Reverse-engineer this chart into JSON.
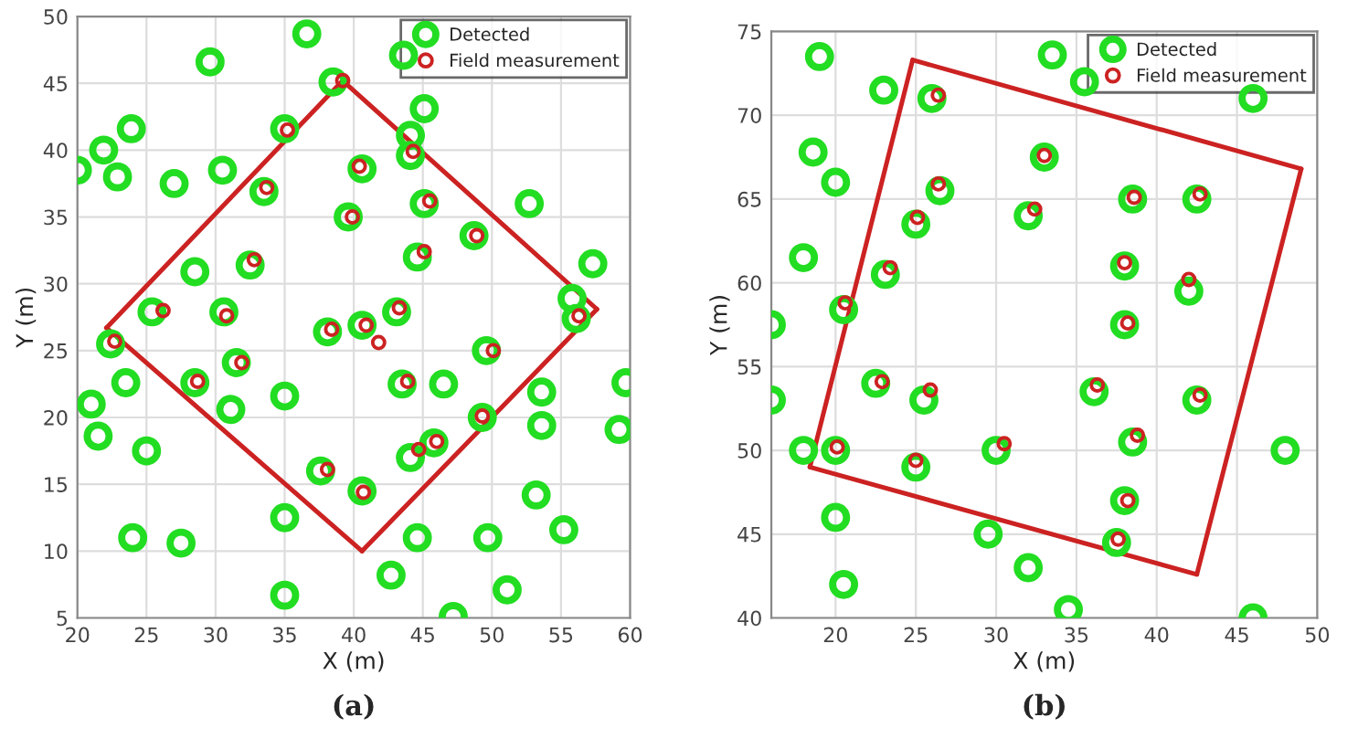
{
  "chart_data": [
    {
      "type": "scatter",
      "xlabel": "X (m)",
      "ylabel": "Y (m)",
      "xlim": [
        20,
        60
      ],
      "ylim": [
        5,
        50
      ],
      "xticks": [
        20,
        25,
        30,
        35,
        40,
        45,
        50,
        55,
        60
      ],
      "yticks": [
        5,
        10,
        15,
        20,
        25,
        30,
        35,
        40,
        45,
        50
      ],
      "grid": true,
      "legend": "top right",
      "annotations": [
        "(a)"
      ],
      "series": [
        {
          "type": "line",
          "color": "#cc2222",
          "marker": "none",
          "line_style": "solid",
          "x": [
            22.1,
            39.2
          ],
          "values": [
            26.7,
            45.2
          ]
        },
        {
          "type": "line",
          "color": "#cc2222",
          "marker": "none",
          "line_style": "solid",
          "x": [
            39.2,
            57.6
          ],
          "values": [
            45.2,
            28.1
          ]
        },
        {
          "type": "line",
          "color": "#cc2222",
          "marker": "none",
          "line_style": "solid",
          "x": [
            40.6,
            57.6
          ],
          "values": [
            10.0,
            28.1
          ]
        },
        {
          "type": "line",
          "color": "#cc2222",
          "marker": "none",
          "line_style": "solid",
          "x": [
            22.1,
            40.6
          ],
          "values": [
            26.7,
            10.0
          ]
        },
        {
          "type": "scatter",
          "name": "Detected",
          "color": "#22dd22",
          "marker": "circle",
          "x": [
            36.6,
            29.6,
            43.6,
            38.5,
            45.1,
            23.9,
            21.9,
            35.0,
            44.1,
            44.1,
            20.0,
            22.9,
            27.0,
            30.5,
            33.5,
            40.6,
            45.1,
            52.7,
            39.6,
            48.7,
            57.3,
            44.6,
            32.5,
            28.5,
            25.4,
            30.6,
            38.1,
            40.6,
            43.1,
            55.8,
            56.1,
            22.4,
            49.6,
            23.5,
            21.0,
            21.5,
            25.0,
            28.5,
            31.5,
            31.1,
            35.0,
            37.6,
            40.6,
            35.0,
            24.0,
            27.5,
            35.0,
            42.7,
            47.2,
            44.6,
            49.7,
            51.1,
            53.2,
            55.2,
            43.5,
            46.5,
            44.1,
            45.8,
            49.3,
            53.6,
            53.6,
            59.7,
            59.2
          ],
          "values": [
            48.7,
            46.6,
            47.1,
            45.1,
            43.1,
            41.6,
            40.0,
            41.6,
            41.1,
            39.6,
            38.5,
            38.0,
            37.5,
            38.5,
            36.9,
            38.6,
            36.0,
            36.0,
            35.0,
            33.6,
            31.5,
            32.0,
            31.4,
            30.9,
            27.9,
            27.9,
            26.4,
            26.9,
            27.9,
            28.9,
            27.4,
            25.5,
            25.0,
            22.6,
            21.0,
            18.6,
            17.5,
            22.6,
            24.1,
            20.6,
            21.6,
            16.0,
            14.5,
            12.5,
            11.0,
            10.6,
            6.7,
            8.2,
            5.1,
            11.0,
            11.0,
            7.1,
            14.2,
            11.6,
            22.5,
            22.5,
            17.0,
            18.1,
            20.0,
            21.9,
            19.4,
            22.6,
            19.1
          ]
        },
        {
          "type": "scatter",
          "name": "Field measurement",
          "color": "#cc2222",
          "marker": "circle",
          "x": [
            39.2,
            35.2,
            44.3,
            33.7,
            40.4,
            45.5,
            39.9,
            48.9,
            45.1,
            32.8,
            26.2,
            30.8,
            38.4,
            40.9,
            43.3,
            41.8,
            56.3,
            22.7,
            50.1,
            28.7,
            31.9,
            38.1,
            40.7,
            43.9,
            44.7,
            46.0,
            49.3
          ],
          "values": [
            45.2,
            41.5,
            39.9,
            37.2,
            38.8,
            36.2,
            35.0,
            33.6,
            32.4,
            31.8,
            28.0,
            27.6,
            26.6,
            26.9,
            28.2,
            25.6,
            27.6,
            25.7,
            25.0,
            22.7,
            24.1,
            16.1,
            14.4,
            22.7,
            17.6,
            18.2,
            20.1
          ]
        }
      ]
    },
    {
      "type": "scatter",
      "xlabel": "X (m)",
      "ylabel": "Y (m)",
      "xlim": [
        16,
        50
      ],
      "ylim": [
        40,
        75
      ],
      "xticks": [
        20,
        25,
        30,
        35,
        40,
        45,
        50
      ],
      "yticks": [
        40,
        45,
        50,
        55,
        60,
        65,
        70,
        75
      ],
      "grid": true,
      "legend": "top right",
      "annotations": [
        "(b)"
      ],
      "series": [
        {
          "type": "line",
          "color": "#cc2222",
          "marker": "none",
          "line_style": "solid",
          "x": [
            18.4,
            24.8
          ],
          "values": [
            49.0,
            73.3
          ]
        },
        {
          "type": "line",
          "color": "#cc2222",
          "marker": "none",
          "line_style": "solid",
          "x": [
            24.8,
            49.0
          ],
          "values": [
            73.3,
            66.8
          ]
        },
        {
          "type": "line",
          "color": "#cc2222",
          "marker": "none",
          "line_style": "solid",
          "x": [
            42.5,
            49.0
          ],
          "values": [
            42.6,
            66.8
          ]
        },
        {
          "type": "line",
          "color": "#cc2222",
          "marker": "none",
          "line_style": "solid",
          "x": [
            18.4,
            42.5
          ],
          "values": [
            49.0,
            42.6
          ]
        },
        {
          "type": "scatter",
          "name": "Detected",
          "color": "#22dd22",
          "marker": "circle",
          "x": [
            19.0,
            33.5,
            35.5,
            23.0,
            26.0,
            46.0,
            18.6,
            20.0,
            33.0,
            26.5,
            38.5,
            42.5,
            25.0,
            32.0,
            18.0,
            23.1,
            38.0,
            42.0,
            20.5,
            16.0,
            38.0,
            16.0,
            22.5,
            25.5,
            36.1,
            42.5,
            18.0,
            20.0,
            30.0,
            38.5,
            48.0,
            25.0,
            38.0,
            20.0,
            29.5,
            37.5,
            20.5,
            32.0,
            34.5,
            46.0
          ],
          "values": [
            73.5,
            73.6,
            72.0,
            71.5,
            71.0,
            71.0,
            67.8,
            66.0,
            67.5,
            65.5,
            65.0,
            65.0,
            63.5,
            64.0,
            61.5,
            60.5,
            61.0,
            59.5,
            58.4,
            57.5,
            57.5,
            53.0,
            54.0,
            53.0,
            53.5,
            53.0,
            50.0,
            50.0,
            50.0,
            50.5,
            50.0,
            49.0,
            47.0,
            46.0,
            45.0,
            44.5,
            42.0,
            43.0,
            40.5,
            40.0
          ]
        },
        {
          "type": "scatter",
          "name": "Field measurement",
          "color": "#cc2222",
          "marker": "circle",
          "x": [
            26.4,
            33.0,
            26.4,
            38.6,
            42.7,
            25.1,
            32.4,
            23.4,
            38.0,
            42.0,
            20.6,
            38.2,
            22.9,
            25.9,
            36.3,
            42.7,
            20.1,
            30.5,
            38.8,
            25.0,
            38.2,
            37.6
          ],
          "values": [
            71.2,
            67.6,
            65.9,
            65.1,
            65.3,
            63.9,
            64.4,
            60.9,
            61.2,
            60.2,
            58.8,
            57.6,
            54.1,
            53.6,
            53.9,
            53.3,
            50.2,
            50.4,
            50.9,
            49.4,
            47.0,
            44.7
          ]
        }
      ]
    }
  ]
}
